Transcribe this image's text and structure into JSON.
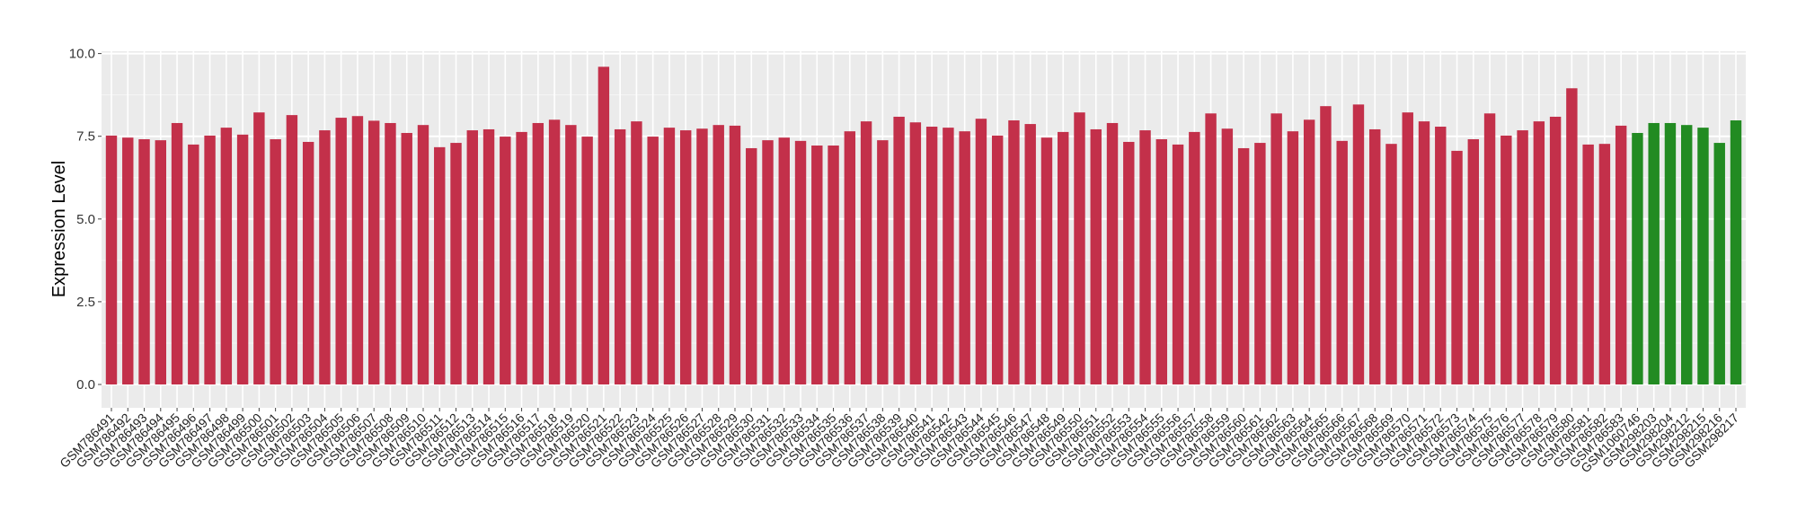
{
  "chart_data": {
    "type": "bar",
    "title": "",
    "xlabel": "",
    "ylabel": "Expression Level",
    "ylim": [
      0,
      10
    ],
    "yticks": [
      "0.0",
      "2.5",
      "5.0",
      "7.5",
      "10.0"
    ],
    "grid": true,
    "legend": "none",
    "colors": {
      "group1": "#C3304A",
      "group2": "#228B22",
      "panel": "#EBEBEB",
      "grid": "#FFFFFF"
    },
    "categories": [
      "GSM786491",
      "GSM786492",
      "GSM786493",
      "GSM786494",
      "GSM786495",
      "GSM786496",
      "GSM786497",
      "GSM786498",
      "GSM786499",
      "GSM786500",
      "GSM786501",
      "GSM786502",
      "GSM786503",
      "GSM786504",
      "GSM786505",
      "GSM786506",
      "GSM786507",
      "GSM786508",
      "GSM786509",
      "GSM786510",
      "GSM786511",
      "GSM786512",
      "GSM786513",
      "GSM786514",
      "GSM786515",
      "GSM786516",
      "GSM786517",
      "GSM786518",
      "GSM786519",
      "GSM786520",
      "GSM786521",
      "GSM786522",
      "GSM786523",
      "GSM786524",
      "GSM786525",
      "GSM786526",
      "GSM786527",
      "GSM786528",
      "GSM786529",
      "GSM786530",
      "GSM786531",
      "GSM786532",
      "GSM786533",
      "GSM786534",
      "GSM786535",
      "GSM786536",
      "GSM786537",
      "GSM786538",
      "GSM786539",
      "GSM786540",
      "GSM786541",
      "GSM786542",
      "GSM786543",
      "GSM786544",
      "GSM786545",
      "GSM786546",
      "GSM786547",
      "GSM786548",
      "GSM786549",
      "GSM786550",
      "GSM786551",
      "GSM786552",
      "GSM786553",
      "GSM786554",
      "GSM786555",
      "GSM786556",
      "GSM786557",
      "GSM786558",
      "GSM786559",
      "GSM786560",
      "GSM786561",
      "GSM786562",
      "GSM786563",
      "GSM786564",
      "GSM786565",
      "GSM786566",
      "GSM786567",
      "GSM786568",
      "GSM786569",
      "GSM786570",
      "GSM786571",
      "GSM786572",
      "GSM786573",
      "GSM786574",
      "GSM786575",
      "GSM786576",
      "GSM786577",
      "GSM786578",
      "GSM786579",
      "GSM786580",
      "GSM786581",
      "GSM786582",
      "GSM786583",
      "GSM1060746",
      "GSM298203",
      "GSM298204",
      "GSM298212",
      "GSM298215",
      "GSM298216",
      "GSM298217"
    ],
    "values": [
      7.52,
      7.46,
      7.41,
      7.38,
      7.9,
      7.25,
      7.52,
      7.76,
      7.55,
      8.22,
      7.41,
      8.14,
      7.33,
      7.68,
      8.06,
      8.11,
      7.97,
      7.9,
      7.6,
      7.84,
      7.17,
      7.3,
      7.68,
      7.71,
      7.49,
      7.63,
      7.9,
      8.0,
      7.84,
      7.49,
      9.6,
      7.71,
      7.95,
      7.49,
      7.76,
      7.68,
      7.73,
      7.84,
      7.82,
      7.14,
      7.38,
      7.46,
      7.36,
      7.22,
      7.22,
      7.65,
      7.95,
      7.38,
      8.09,
      7.92,
      7.79,
      7.76,
      7.65,
      8.03,
      7.52,
      7.98,
      7.87,
      7.46,
      7.63,
      8.22,
      7.71,
      7.9,
      7.33,
      7.68,
      7.41,
      7.25,
      7.63,
      8.19,
      7.73,
      7.14,
      7.3,
      8.19,
      7.65,
      8.0,
      8.41,
      7.36,
      8.46,
      7.71,
      7.27,
      8.22,
      7.95,
      7.79,
      7.06,
      7.41,
      8.19,
      7.52,
      7.68,
      7.95,
      8.09,
      8.95,
      7.25,
      7.27,
      7.82,
      7.6,
      7.9,
      7.9,
      7.84,
      7.76,
      7.3,
      7.98
    ],
    "groups": [
      "group1",
      "group1",
      "group1",
      "group1",
      "group1",
      "group1",
      "group1",
      "group1",
      "group1",
      "group1",
      "group1",
      "group1",
      "group1",
      "group1",
      "group1",
      "group1",
      "group1",
      "group1",
      "group1",
      "group1",
      "group1",
      "group1",
      "group1",
      "group1",
      "group1",
      "group1",
      "group1",
      "group1",
      "group1",
      "group1",
      "group1",
      "group1",
      "group1",
      "group1",
      "group1",
      "group1",
      "group1",
      "group1",
      "group1",
      "group1",
      "group1",
      "group1",
      "group1",
      "group1",
      "group1",
      "group1",
      "group1",
      "group1",
      "group1",
      "group1",
      "group1",
      "group1",
      "group1",
      "group1",
      "group1",
      "group1",
      "group1",
      "group1",
      "group1",
      "group1",
      "group1",
      "group1",
      "group1",
      "group1",
      "group1",
      "group1",
      "group1",
      "group1",
      "group1",
      "group1",
      "group1",
      "group1",
      "group1",
      "group1",
      "group1",
      "group1",
      "group1",
      "group1",
      "group1",
      "group1",
      "group1",
      "group1",
      "group1",
      "group1",
      "group1",
      "group1",
      "group1",
      "group1",
      "group1",
      "group1",
      "group1",
      "group1",
      "group1",
      "group2",
      "group2",
      "group2",
      "group2",
      "group2",
      "group2",
      "group2"
    ]
  }
}
